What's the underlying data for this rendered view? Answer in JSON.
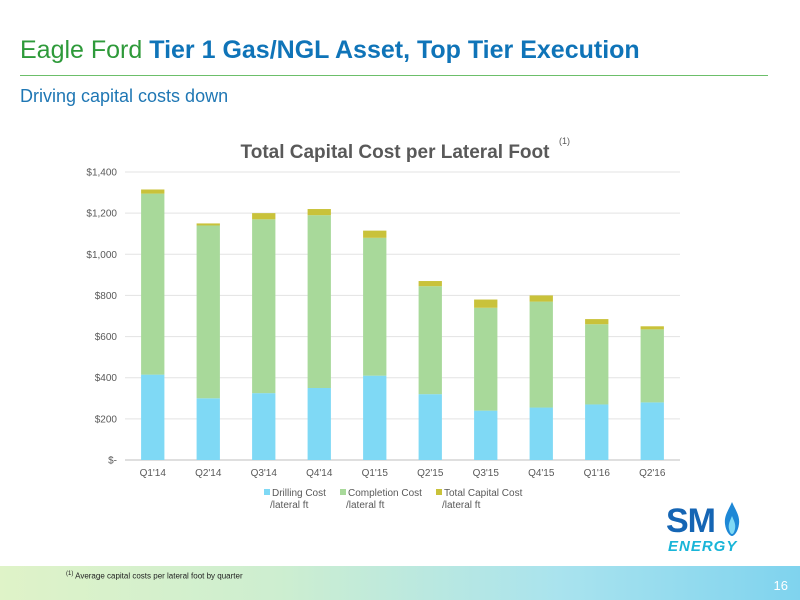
{
  "header": {
    "title_lead": "Eagle Ford ",
    "title_bold": "Tier 1 Gas/NGL Asset, Top Tier Execution",
    "subtitle": "Driving capital costs down"
  },
  "chart_data": {
    "type": "bar",
    "stacked": true,
    "title": "Total Capital Cost per Lateral Foot",
    "title_superscript": "(1)",
    "categories": [
      "Q1'14",
      "Q2'14",
      "Q3'14",
      "Q4'14",
      "Q1'15",
      "Q2'15",
      "Q3'15",
      "Q4'15",
      "Q1'16",
      "Q2'16"
    ],
    "series": [
      {
        "name": "Drilling Cost /lateral ft",
        "legend_lines": [
          "Drilling Cost",
          "/lateral ft"
        ],
        "color": "#7fd9f5",
        "values": [
          415,
          300,
          325,
          350,
          410,
          320,
          240,
          255,
          270,
          280
        ]
      },
      {
        "name": "Completion Cost /lateral ft",
        "legend_lines": [
          "Completion Cost",
          "/lateral ft"
        ],
        "color": "#a8d99a",
        "values": [
          880,
          840,
          845,
          840,
          670,
          525,
          500,
          515,
          390,
          355
        ]
      },
      {
        "name": "Total Capital Cost /lateral ft",
        "legend_lines": [
          "Total Capital Cost",
          "/lateral ft"
        ],
        "color": "#c9c23a",
        "values": [
          20,
          10,
          30,
          30,
          35,
          25,
          40,
          30,
          25,
          15
        ]
      }
    ],
    "ylim": [
      0,
      1400
    ],
    "yticks": [
      0,
      200,
      400,
      600,
      800,
      1000,
      1200,
      1400
    ],
    "ytick_labels": [
      "$-",
      "$200",
      "$400",
      "$600",
      "$800",
      "$1,000",
      "$1,200",
      "$1,400"
    ],
    "grid": true,
    "legend_position": "bottom"
  },
  "logo": {
    "text_main": "SM",
    "text_sub": "ENERGY"
  },
  "footer": {
    "footnote_marker": "(1)",
    "footnote_text": "Average capital costs per lateral foot by quarter",
    "page_number": "16"
  },
  "colors": {
    "title_green": "#2e9a3a",
    "title_blue": "#0f74b8",
    "drilling": "#7fd9f5",
    "completion": "#a8d99a",
    "total": "#c9c23a"
  }
}
